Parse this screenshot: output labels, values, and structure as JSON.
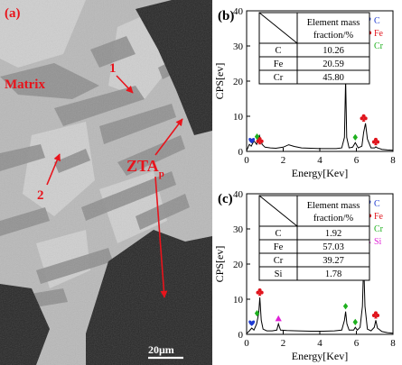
{
  "micrograph": {
    "panel_label": "(a)",
    "labels": {
      "matrix": "Matrix",
      "point_1": "1",
      "point_2": "2",
      "zta_main": "ZTA",
      "zta_sub": "p"
    },
    "scale_bar": "20μm"
  },
  "chart_data": [
    {
      "type": "line",
      "panel_label": "(b)",
      "xlabel": "Energy[Kev]",
      "ylabel": "CPS[ev]",
      "xlim": [
        0,
        8
      ],
      "ylim": [
        0,
        40
      ],
      "xticks": [
        "0",
        "2",
        "4",
        "6",
        "8"
      ],
      "yticks": [
        "0",
        "10",
        "20",
        "30",
        "40"
      ],
      "series": [
        {
          "x": [
            0,
            0.15,
            0.25,
            0.4,
            0.55,
            0.7,
            0.85,
            1.0,
            1.3,
            1.6,
            2.0,
            2.3,
            2.6,
            3.0,
            3.5,
            4.0,
            4.5,
            4.9,
            5.2,
            5.35,
            5.41,
            5.47,
            5.6,
            5.8,
            5.94,
            6.1,
            6.3,
            6.4,
            6.5,
            6.6,
            6.8,
            7.0,
            7.06,
            7.15,
            7.4,
            7.7,
            8.0
          ],
          "y": [
            0.2,
            2.0,
            1.5,
            3.0,
            2.0,
            4.5,
            2.0,
            1.2,
            1.0,
            0.9,
            1.2,
            1.9,
            1.4,
            1.0,
            0.9,
            0.8,
            0.8,
            0.8,
            1.0,
            4.0,
            20.5,
            4.0,
            1.0,
            1.2,
            2.5,
            1.0,
            1.5,
            5.5,
            8.0,
            3.5,
            1.0,
            1.0,
            1.3,
            1.0,
            0.6,
            0.4,
            0.3
          ]
        }
      ],
      "peak_markers": [
        {
          "element": "C",
          "x": 0.28,
          "y": 3.2,
          "color": "#1f3bd1",
          "shape": "heart"
        },
        {
          "element": "Cr",
          "x": 0.57,
          "y": 4.2,
          "color": "#1eb01e",
          "shape": "diamond"
        },
        {
          "element": "Fe",
          "x": 0.72,
          "y": 3.0,
          "color": "#e0141c",
          "shape": "club"
        },
        {
          "element": "Cr",
          "x": 5.41,
          "y": 22.0,
          "color": "#1eb01e",
          "shape": "diamond"
        },
        {
          "element": "Cr",
          "x": 5.94,
          "y": 4.0,
          "color": "#1eb01e",
          "shape": "diamond"
        },
        {
          "element": "Fe",
          "x": 6.4,
          "y": 9.5,
          "color": "#e0141c",
          "shape": "club"
        },
        {
          "element": "Fe",
          "x": 7.06,
          "y": 2.8,
          "color": "#e0141c",
          "shape": "club"
        }
      ],
      "legend": [
        {
          "label": "C",
          "color": "#1f3bd1",
          "shape": "heart"
        },
        {
          "label": "Fe",
          "color": "#e0141c",
          "shape": "club"
        },
        {
          "label": "Cr",
          "color": "#1eb01e",
          "shape": "diamond"
        }
      ],
      "table": {
        "header": [
          "Element mass",
          "fraction/%"
        ],
        "rows": [
          [
            "C",
            "10.26"
          ],
          [
            "Fe",
            "20.59"
          ],
          [
            "Cr",
            "45.80"
          ]
        ]
      }
    },
    {
      "type": "line",
      "panel_label": "(c)",
      "xlabel": "Energy[Kev]",
      "ylabel": "CPS[ev]",
      "xlim": [
        0,
        8
      ],
      "ylim": [
        0,
        40
      ],
      "xticks": [
        "0",
        "2",
        "4",
        "6",
        "8"
      ],
      "yticks": [
        "0",
        "10",
        "20",
        "30",
        "40"
      ],
      "series": [
        {
          "x": [
            0,
            0.15,
            0.28,
            0.4,
            0.55,
            0.66,
            0.72,
            0.8,
            0.9,
            1.1,
            1.4,
            1.65,
            1.74,
            1.85,
            2.2,
            2.8,
            3.5,
            4.2,
            4.8,
            5.2,
            5.35,
            5.41,
            5.48,
            5.6,
            5.85,
            5.94,
            6.05,
            6.2,
            6.33,
            6.4,
            6.47,
            6.6,
            6.8,
            6.98,
            7.06,
            7.15,
            7.4,
            7.7,
            8.0
          ],
          "y": [
            0.2,
            1.0,
            1.8,
            1.2,
            3.0,
            6.0,
            10.5,
            4.0,
            1.5,
            1.0,
            1.0,
            1.2,
            3.0,
            1.2,
            1.1,
            1.0,
            0.9,
            0.9,
            1.0,
            1.2,
            4.0,
            6.5,
            3.0,
            1.2,
            1.2,
            2.0,
            1.2,
            2.0,
            8.0,
            20.5,
            8.0,
            1.5,
            1.0,
            2.0,
            4.0,
            1.8,
            0.8,
            0.5,
            0.3
          ]
        }
      ],
      "peak_markers": [
        {
          "element": "C",
          "x": 0.28,
          "y": 3.3,
          "color": "#1f3bd1",
          "shape": "heart"
        },
        {
          "element": "Cr",
          "x": 0.57,
          "y": 6.0,
          "color": "#1eb01e",
          "shape": "diamond"
        },
        {
          "element": "Fe",
          "x": 0.72,
          "y": 12.0,
          "color": "#e0141c",
          "shape": "club"
        },
        {
          "element": "Si",
          "x": 1.74,
          "y": 4.5,
          "color": "#e020d6",
          "shape": "triangle"
        },
        {
          "element": "Cr",
          "x": 5.41,
          "y": 8.0,
          "color": "#1eb01e",
          "shape": "diamond"
        },
        {
          "element": "Cr",
          "x": 5.94,
          "y": 3.5,
          "color": "#1eb01e",
          "shape": "diamond"
        },
        {
          "element": "Fe",
          "x": 6.4,
          "y": 22.0,
          "color": "#e0141c",
          "shape": "club"
        },
        {
          "element": "Fe",
          "x": 7.06,
          "y": 5.5,
          "color": "#e0141c",
          "shape": "club"
        }
      ],
      "legend": [
        {
          "label": "C",
          "color": "#1f3bd1",
          "shape": "heart"
        },
        {
          "label": "Fe",
          "color": "#e0141c",
          "shape": "club"
        },
        {
          "label": "Cr",
          "color": "#1eb01e",
          "shape": "diamond"
        },
        {
          "label": "Si",
          "color": "#e020d6",
          "shape": "triangle"
        }
      ],
      "table": {
        "header": [
          "Element mass",
          "fraction/%"
        ],
        "rows": [
          [
            "C",
            "1.92"
          ],
          [
            "Fe",
            "57.03"
          ],
          [
            "Cr",
            "39.27"
          ],
          [
            "Si",
            "1.78"
          ]
        ]
      }
    }
  ],
  "colors": {
    "annotation": "#e8141c",
    "matrix_gray": "#b9b9b9",
    "dark_phase": "#272727",
    "axis": "#000000"
  }
}
